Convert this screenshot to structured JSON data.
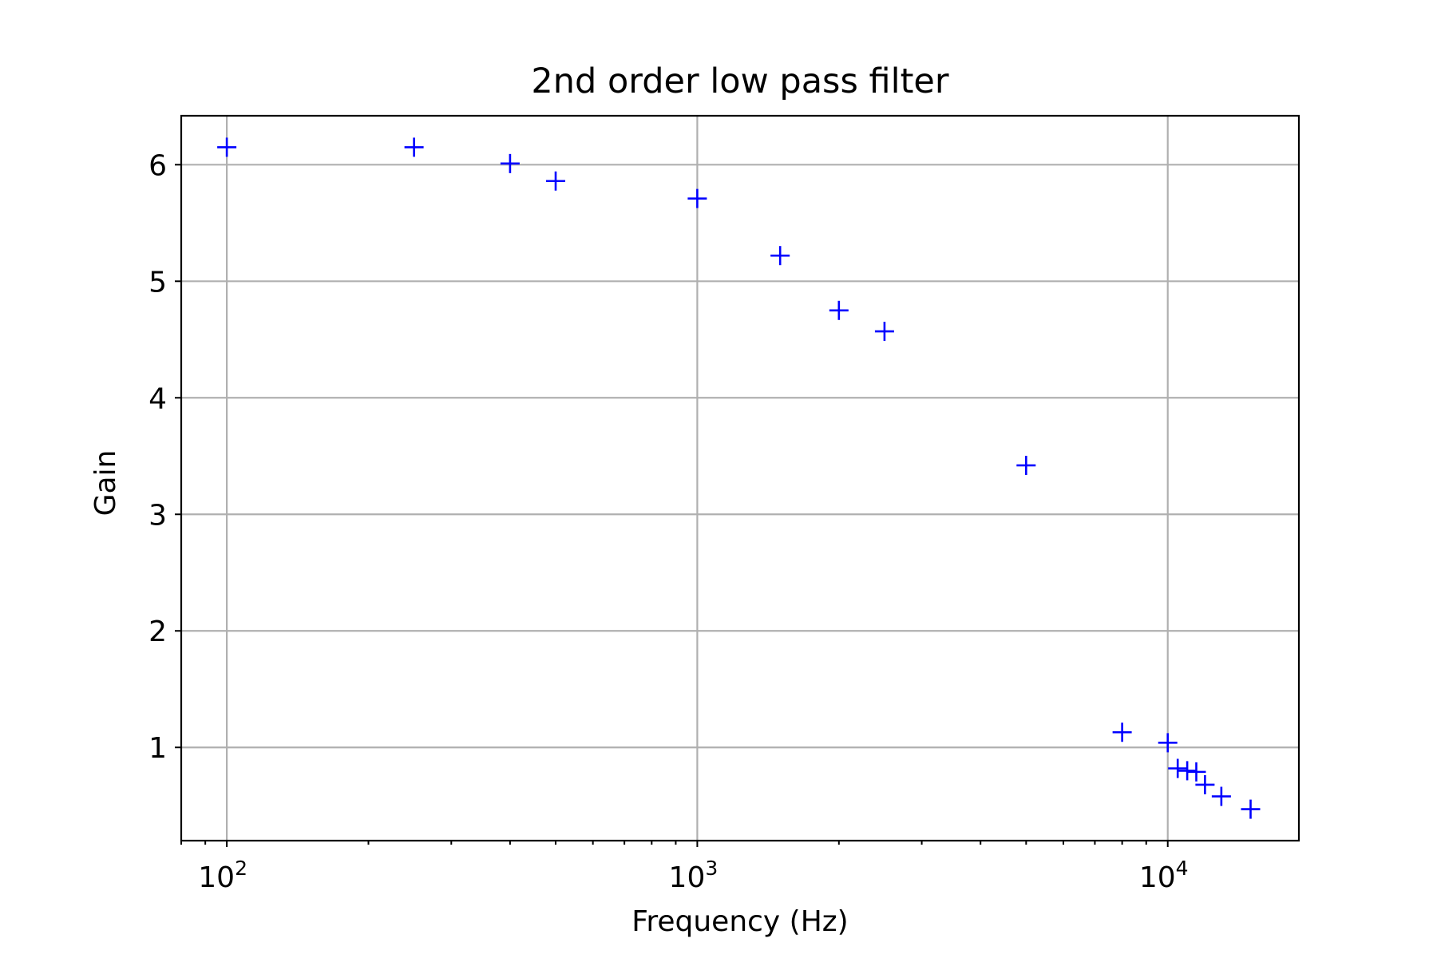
{
  "chart_data": {
    "type": "scatter",
    "title": "2nd order low pass filter",
    "xlabel": "Frequency (Hz)",
    "ylabel": "Gain",
    "xscale": "log",
    "xlim": [
      80,
      19000
    ],
    "ylim": [
      0.2,
      6.42
    ],
    "grid": true,
    "marker": "+",
    "color": "#0000ff",
    "x_ticks": [
      {
        "value": 100,
        "base": "10",
        "exp": "2"
      },
      {
        "value": 1000,
        "base": "10",
        "exp": "3"
      },
      {
        "value": 10000,
        "base": "10",
        "exp": "4"
      }
    ],
    "y_ticks": [
      1,
      2,
      3,
      4,
      5,
      6
    ],
    "x": [
      100,
      250,
      400,
      500,
      1000,
      1500,
      2000,
      2500,
      5000,
      8000,
      10000,
      10500,
      11000,
      11500,
      12000,
      13000,
      15000
    ],
    "y": [
      6.15,
      6.15,
      6.01,
      5.86,
      5.71,
      5.22,
      4.75,
      4.57,
      3.42,
      1.13,
      1.04,
      0.82,
      0.8,
      0.79,
      0.68,
      0.58,
      0.47
    ]
  }
}
